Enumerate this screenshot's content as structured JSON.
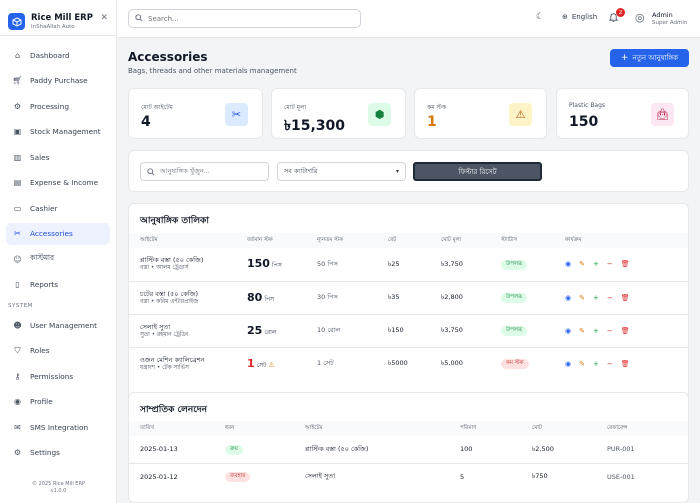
{
  "brand": {
    "title": "Rice Mill ERP",
    "subtitle": "InShaAllah Auto"
  },
  "sidebar": {
    "items": [
      {
        "label": "Dashboard",
        "icon": "home-icon"
      },
      {
        "label": "Paddy Purchase",
        "icon": "cart-icon"
      },
      {
        "label": "Processing",
        "icon": "gear-icon"
      },
      {
        "label": "Stock Management",
        "icon": "box-icon"
      },
      {
        "label": "Sales",
        "icon": "bar-chart-icon"
      },
      {
        "label": "Expense & Income",
        "icon": "wallet-icon"
      },
      {
        "label": "Cashier",
        "icon": "clipboard-icon"
      },
      {
        "label": "Accessories",
        "icon": "tools-icon",
        "active": true
      },
      {
        "label": "কাস্টমার",
        "icon": "users-icon"
      },
      {
        "label": "Reports",
        "icon": "document-icon"
      }
    ],
    "system_label": "SYSTEM",
    "system_items": [
      {
        "label": "User Management",
        "icon": "user-group-icon"
      },
      {
        "label": "Roles",
        "icon": "shield-icon"
      },
      {
        "label": "Permissions",
        "icon": "key-icon"
      },
      {
        "label": "Profile",
        "icon": "user-circle-icon"
      },
      {
        "label": "SMS Integration",
        "icon": "chat-icon"
      },
      {
        "label": "Settings",
        "icon": "cog-icon"
      }
    ],
    "footer_copyright": "© 2025 Rice Mill ERP",
    "footer_version": "v1.0.0"
  },
  "topbar": {
    "search_placeholder": "Search...",
    "language": "English",
    "notification_count": "2",
    "admin_name": "Admin",
    "admin_role": "Super Admin"
  },
  "page": {
    "title": "Accessories",
    "subtitle": "Bags, threads and other materials management",
    "add_button": "নতুন আনুষাঙ্গিক"
  },
  "stats": [
    {
      "label": "মোট আইটেম",
      "value": "4",
      "icon": "tools-icon",
      "color": "#111827",
      "bg": "#dbeafe",
      "fg": "#1d4ed8"
    },
    {
      "label": "মোট মূল্য",
      "value": "৳15,300",
      "icon": "cube-icon",
      "color": "#111827",
      "bg": "#dcfce7",
      "fg": "#15803d"
    },
    {
      "label": "কম স্টক",
      "value": "1",
      "icon": "warning-icon",
      "color": "#d97706",
      "bg": "#fef3c7",
      "fg": "#b45309"
    },
    {
      "label": "Plastic Bags",
      "value": "150",
      "icon": "bag-icon",
      "color": "#111827",
      "bg": "#fce7f3",
      "fg": "#be123c"
    }
  ],
  "filters": {
    "search_placeholder": "আনুষাঙ্গিক খুঁজুন...",
    "category_selected": "সব ক্যাটাগরি",
    "reset_button": "ফিল্টার রিসেট"
  },
  "accessories": {
    "title": "আনুষাঙ্গিক তালিকা",
    "columns": [
      "আইটেম",
      "বর্তমান স্টক",
      "ন্যূনতম স্টক",
      "রেট",
      "মোট মূল্য",
      "স্ট্যাটাস",
      "কার্যক্রম"
    ],
    "rows": [
      {
        "name": "প্লাস্টিক বস্তা (৫০ কেজি)",
        "sub": "বস্তা • আলম ট্রেডার্স",
        "stock": "150",
        "unit": "পিস",
        "warn": false,
        "min": "50 পিস",
        "rate": "৳25",
        "total": "৳3,750",
        "status": "উপলব্ধ",
        "status_type": "green"
      },
      {
        "name": "চটের বস্তা (৫০ কেজি)",
        "sub": "বস্তা • করিম এন্টারপ্রাইজ",
        "stock": "80",
        "unit": "পিস",
        "warn": false,
        "min": "30 পিস",
        "rate": "৳35",
        "total": "৳2,800",
        "status": "উপলব্ধ",
        "status_type": "green"
      },
      {
        "name": "সেলাই সুতা",
        "sub": "সুতা • রহমান ট্রেডিং",
        "stock": "25",
        "unit": "রোল",
        "warn": false,
        "min": "10 রোল",
        "rate": "৳150",
        "total": "৳3,750",
        "status": "উপলব্ধ",
        "status_type": "green"
      },
      {
        "name": "ওজন মেশিন ক্যালিব্রেশন",
        "sub": "যন্ত্রাংশ • টেক সার্ভিস",
        "stock": "1",
        "unit": "সেট",
        "warn": true,
        "min": "1 সেট",
        "rate": "৳5000",
        "total": "৳5,000",
        "status": "কম স্টক",
        "status_type": "red"
      }
    ]
  },
  "transactions": {
    "title": "সাম্প্রতিক লেনদেন",
    "columns": [
      "তারিখ",
      "ধরন",
      "আইটেম",
      "পরিমাণ",
      "মোট",
      "রেফারেন্স"
    ],
    "rows": [
      {
        "date": "2025-01-13",
        "type": "ক্রয়",
        "type_kind": "green",
        "item": "প্লাস্টিক বস্তা (৫০ কেজি)",
        "qty": "100",
        "total": "৳2,500",
        "ref": "PUR-001"
      },
      {
        "date": "2025-01-12",
        "type": "ব্যবহার",
        "type_kind": "red",
        "item": "সেলাই সুতা",
        "qty": "5",
        "total": "৳750",
        "ref": "USE-001"
      }
    ]
  }
}
